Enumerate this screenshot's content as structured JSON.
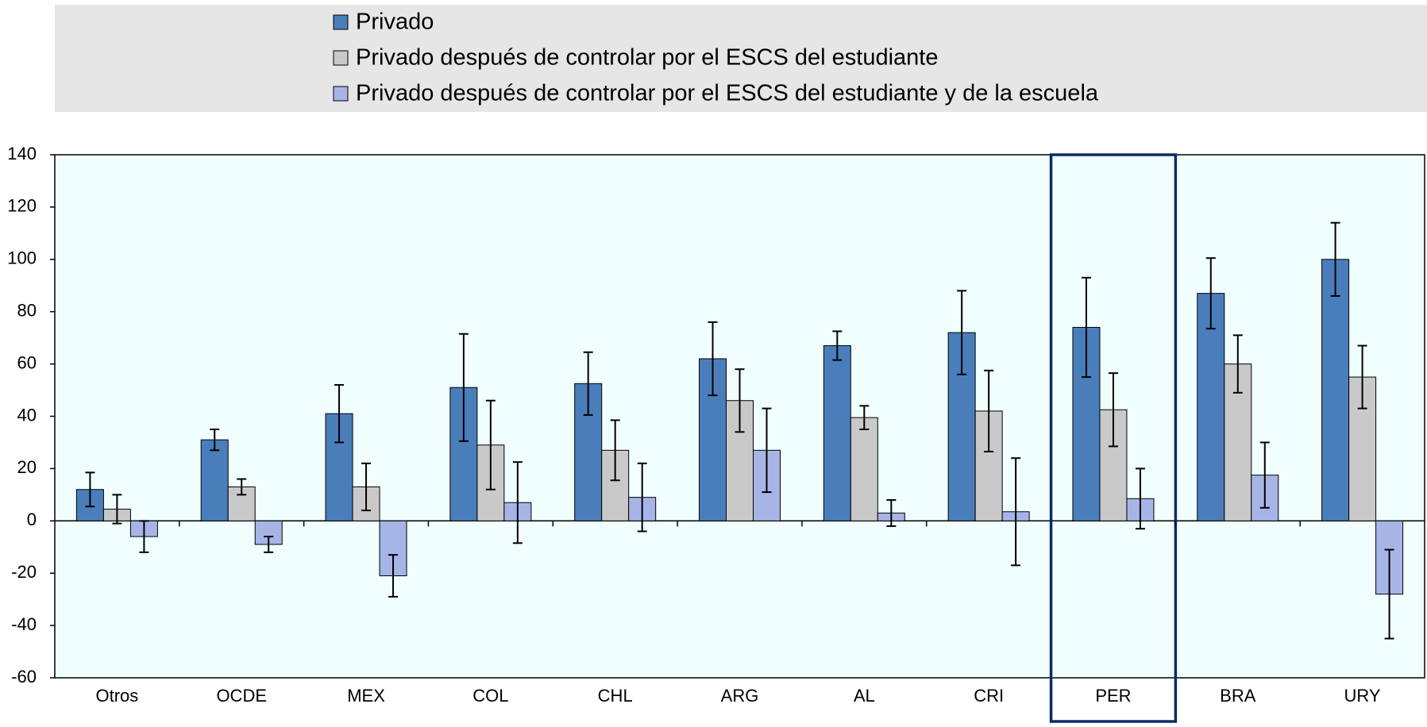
{
  "chart_data": {
    "type": "bar",
    "categories": [
      "Otros",
      "OCDE",
      "MEX",
      "COL",
      "CHL",
      "ARG",
      "AL",
      "CRI",
      "PER",
      "BRA",
      "URY"
    ],
    "series": [
      {
        "name": "Privado",
        "color": "#4a7ebb",
        "values": [
          12,
          31,
          41,
          51,
          52.5,
          62,
          67,
          72,
          74,
          87,
          100
        ],
        "errors": [
          6.5,
          4,
          11,
          20.5,
          12,
          14,
          5.5,
          16,
          19,
          13.5,
          14
        ]
      },
      {
        "name": "Privado después de controlar por el ESCS del estudiante",
        "color": "#c9c9c9",
        "values": [
          4.5,
          13,
          13,
          29,
          27,
          46,
          39.5,
          42,
          42.5,
          60,
          55
        ],
        "errors": [
          5.5,
          3,
          9,
          17,
          11.5,
          12,
          4.5,
          15.5,
          14,
          11,
          12
        ]
      },
      {
        "name": "Privado después de controlar por el ESCS del estudiante y de la escuela",
        "color": "#a7b5e6",
        "values": [
          -6,
          -9,
          -21,
          7,
          9,
          27,
          3,
          3.5,
          8.5,
          17.5,
          -28
        ],
        "errors": [
          6,
          3,
          8,
          15.5,
          13,
          16,
          5,
          20.5,
          11.5,
          12.5,
          17
        ]
      }
    ],
    "ylim": [
      -60,
      140
    ],
    "yticks": [
      -60,
      -40,
      -20,
      0,
      20,
      40,
      60,
      80,
      100,
      120,
      140
    ],
    "highlight": "PER"
  }
}
